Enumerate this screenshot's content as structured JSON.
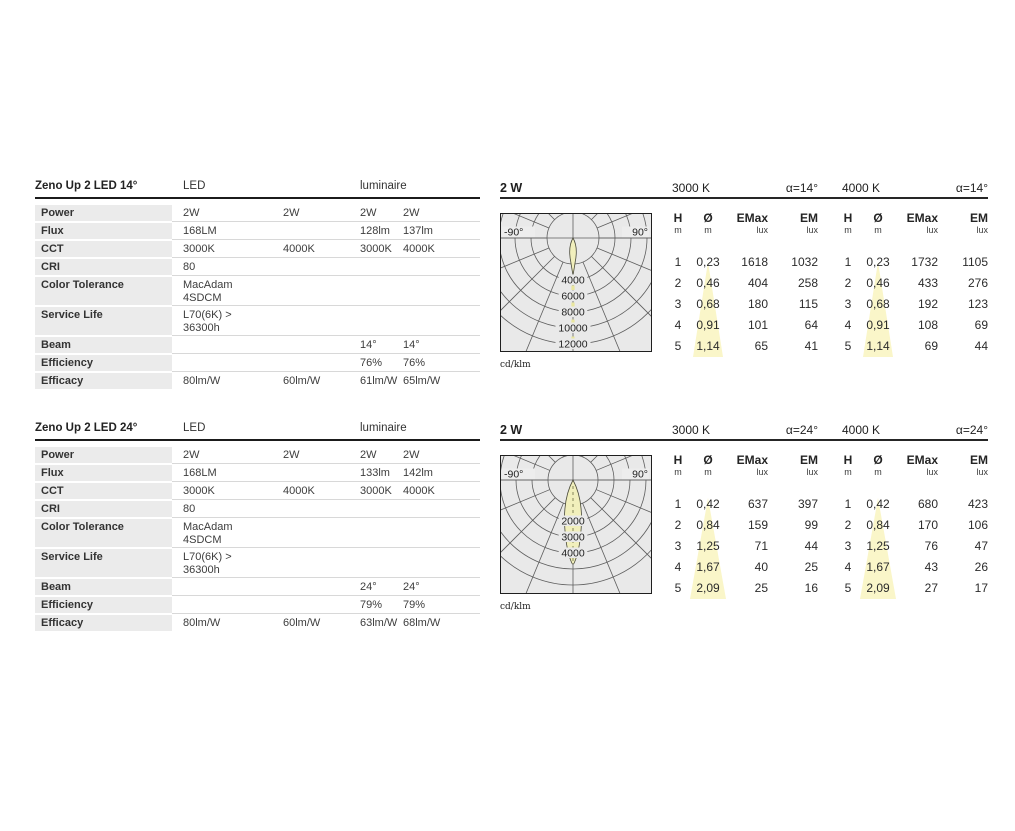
{
  "colors": {
    "highlight_yellow": "#faf6c9",
    "beam_fill": "#f1efbc",
    "diagram_background": "#e9e9e9",
    "label_cell_background": "#ebebeb",
    "grid_line": "#5d5d5d"
  },
  "sections": [
    {
      "spec": {
        "title": "Zeno Up 2 LED 14°",
        "columns": {
          "led": "LED",
          "luminaire": "luminaire"
        },
        "rows": [
          {
            "label": "Power",
            "lines": 1,
            "values": [
              "2W",
              "2W",
              "2W",
              "2W"
            ]
          },
          {
            "label": "Flux",
            "lines": 1,
            "values": [
              "168LM",
              "",
              "128lm",
              "137lm"
            ]
          },
          {
            "label": "CCT",
            "lines": 1,
            "values": [
              "3000K",
              "4000K",
              "3000K",
              "4000K"
            ]
          },
          {
            "label": "CRI",
            "lines": 1,
            "values": [
              "80",
              "",
              "",
              ""
            ]
          },
          {
            "label": "Color Tolerance",
            "lines": 2,
            "values": [
              "MacAdam\n4SDCM",
              "",
              "",
              ""
            ]
          },
          {
            "label": "Service Life",
            "lines": 2,
            "values": [
              "L70(6K) >\n36300h",
              "",
              "",
              ""
            ]
          },
          {
            "label": "Beam",
            "lines": 1,
            "values": [
              "",
              "",
              "14°",
              "14°"
            ]
          },
          {
            "label": "Efficiency",
            "lines": 1,
            "values": [
              "",
              "",
              "76%",
              "76%"
            ]
          },
          {
            "label": "Efficacy",
            "lines": 1,
            "values": [
              "80lm/W",
              "60lm/W",
              "61lm/W",
              "65lm/W"
            ]
          }
        ]
      },
      "diagram": {
        "unit": "cd/klm",
        "angle_labels": [
          "-90°",
          "90°"
        ],
        "ring_labels": [
          "4000",
          "6000",
          "8000",
          "10000",
          "12000"
        ],
        "beam_type": "narrow"
      },
      "photometry": {
        "power": "2 W",
        "col_headers": [
          {
            "label": "H",
            "unit": "m"
          },
          {
            "label": "Ø",
            "unit": "m"
          },
          {
            "label": "EMax",
            "unit": "lux"
          },
          {
            "label": "EM",
            "unit": "lux"
          }
        ],
        "groups": [
          {
            "cct": "3000 K",
            "alpha": "α=14°",
            "rows": [
              [
                "1",
                "0,23",
                "1618",
                "1032"
              ],
              [
                "2",
                "0,46",
                "404",
                "258"
              ],
              [
                "3",
                "0,68",
                "180",
                "115"
              ],
              [
                "4",
                "0,91",
                "101",
                "64"
              ],
              [
                "5",
                "1,14",
                "65",
                "41"
              ]
            ]
          },
          {
            "cct": "4000 K",
            "alpha": "α=14°",
            "rows": [
              [
                "1",
                "0,23",
                "1732",
                "1105"
              ],
              [
                "2",
                "0,46",
                "433",
                "276"
              ],
              [
                "3",
                "0,68",
                "192",
                "123"
              ],
              [
                "4",
                "0,91",
                "108",
                "69"
              ],
              [
                "5",
                "1,14",
                "69",
                "44"
              ]
            ]
          }
        ]
      }
    },
    {
      "spec": {
        "title": "Zeno Up 2 LED 24°",
        "columns": {
          "led": "LED",
          "luminaire": "luminaire"
        },
        "rows": [
          {
            "label": "Power",
            "lines": 1,
            "values": [
              "2W",
              "2W",
              "2W",
              "2W"
            ]
          },
          {
            "label": "Flux",
            "lines": 1,
            "values": [
              "168LM",
              "",
              "133lm",
              "142lm"
            ]
          },
          {
            "label": "CCT",
            "lines": 1,
            "values": [
              "3000K",
              "4000K",
              "3000K",
              "4000K"
            ]
          },
          {
            "label": "CRI",
            "lines": 1,
            "values": [
              "80",
              "",
              "",
              ""
            ]
          },
          {
            "label": "Color Tolerance",
            "lines": 2,
            "values": [
              "MacAdam\n4SDCM",
              "",
              "",
              ""
            ]
          },
          {
            "label": "Service Life",
            "lines": 2,
            "values": [
              "L70(6K) >\n36300h",
              "",
              "",
              ""
            ]
          },
          {
            "label": "Beam",
            "lines": 1,
            "values": [
              "",
              "",
              "24°",
              "24°"
            ]
          },
          {
            "label": "Efficiency",
            "lines": 1,
            "values": [
              "",
              "",
              "79%",
              "79%"
            ]
          },
          {
            "label": "Efficacy",
            "lines": 1,
            "values": [
              "80lm/W",
              "60lm/W",
              "63lm/W",
              "68lm/W"
            ]
          }
        ]
      },
      "diagram": {
        "unit": "cd/klm",
        "angle_labels": [
          "-90°",
          "90°"
        ],
        "ring_labels": [
          "2000",
          "3000",
          "4000"
        ],
        "beam_type": "wide"
      },
      "photometry": {
        "power": "2 W",
        "col_headers": [
          {
            "label": "H",
            "unit": "m"
          },
          {
            "label": "Ø",
            "unit": "m"
          },
          {
            "label": "EMax",
            "unit": "lux"
          },
          {
            "label": "EM",
            "unit": "lux"
          }
        ],
        "groups": [
          {
            "cct": "3000 K",
            "alpha": "α=24°",
            "rows": [
              [
                "1",
                "0,42",
                "637",
                "397"
              ],
              [
                "2",
                "0,84",
                "159",
                "99"
              ],
              [
                "3",
                "1,25",
                "71",
                "44"
              ],
              [
                "4",
                "1,67",
                "40",
                "25"
              ],
              [
                "5",
                "2,09",
                "25",
                "16"
              ]
            ]
          },
          {
            "cct": "4000 K",
            "alpha": "α=24°",
            "rows": [
              [
                "1",
                "0,42",
                "680",
                "423"
              ],
              [
                "2",
                "0,84",
                "170",
                "106"
              ],
              [
                "3",
                "1,25",
                "76",
                "47"
              ],
              [
                "4",
                "1,67",
                "43",
                "26"
              ],
              [
                "5",
                "2,09",
                "27",
                "17"
              ]
            ]
          }
        ]
      }
    }
  ]
}
